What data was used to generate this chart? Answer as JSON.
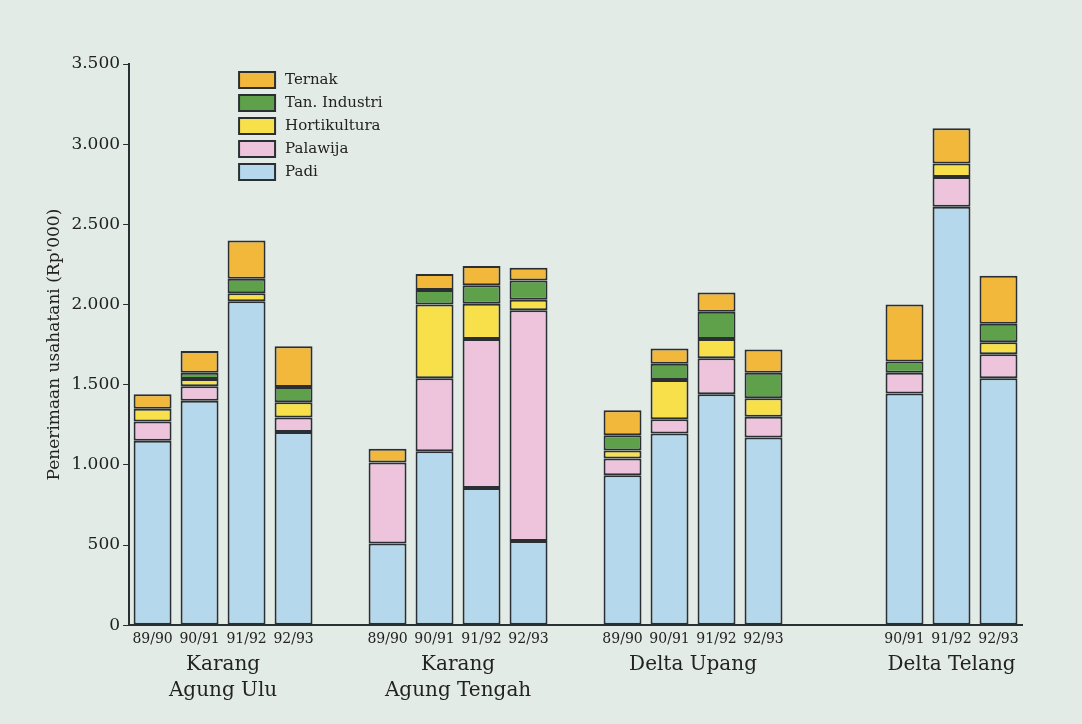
{
  "chart_data": {
    "type": "bar",
    "stacked": true,
    "ylabel": "Penerimaan usahatani (Rp'000)",
    "categories": [
      "89/90",
      "90/91",
      "91/92",
      "92/93",
      null,
      "89/90",
      "90/91",
      "91/92",
      "92/93",
      null,
      "89/90",
      "90/91",
      "91/92",
      "92/93",
      null,
      null,
      "90/91",
      "91/92",
      "92/93"
    ],
    "series": [
      {
        "name": "Padi",
        "color": "#b5d8ec",
        "values": [
          1150,
          1400,
          2020,
          1205,
          null,
          510,
          1085,
          855,
          525,
          null,
          935,
          1195,
          1440,
          1170,
          null,
          null,
          1445,
          2610,
          1540
        ]
      },
      {
        "name": "Palawija",
        "color": "#eec3dc",
        "values": [
          120,
          90,
          0,
          90,
          null,
          505,
          455,
          930,
          1440,
          null,
          105,
          90,
          225,
          130,
          null,
          null,
          130,
          185,
          150
        ]
      },
      {
        "name": "Hortikultura",
        "color": "#f7e04a",
        "values": [
          80,
          45,
          50,
          95,
          null,
          0,
          460,
          220,
          65,
          null,
          50,
          245,
          120,
          115,
          null,
          null,
          0,
          85,
          75
        ]
      },
      {
        "name": "Tan. Industri",
        "color": "#5fa04a",
        "values": [
          0,
          40,
          90,
          95,
          null,
          0,
          90,
          115,
          120,
          null,
          95,
          100,
          170,
          160,
          null,
          null,
          70,
          0,
          115
        ]
      },
      {
        "name": "Ternak",
        "color": "#f2b83c",
        "values": [
          90,
          135,
          240,
          255,
          null,
          85,
          100,
          120,
          80,
          null,
          155,
          95,
          120,
          145,
          null,
          null,
          355,
          220,
          300
        ]
      }
    ],
    "ylim": [
      0,
      3500
    ],
    "yticks": [
      {
        "value": 0,
        "label": "0"
      },
      {
        "value": 500,
        "label": "500"
      },
      {
        "value": 1000,
        "label": "1.000"
      },
      {
        "value": 1500,
        "label": "1.500"
      },
      {
        "value": 2000,
        "label": "2.000"
      },
      {
        "value": 2500,
        "label": "2.500"
      },
      {
        "value": 3000,
        "label": "3.000"
      },
      {
        "value": 3500,
        "label": "3.500"
      }
    ],
    "annotations": [
      "Karang\nAgung Ulu",
      "Karang\nAgung Tengah",
      "Delta Upang",
      "Delta Telang"
    ],
    "legend": "top left",
    "grid": false
  }
}
